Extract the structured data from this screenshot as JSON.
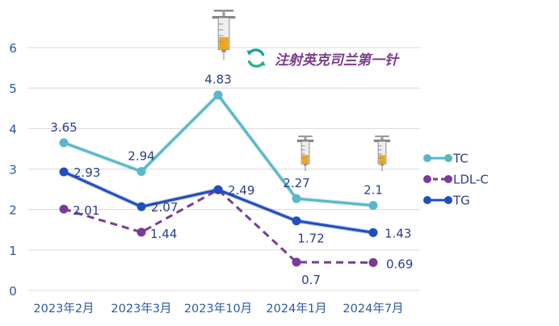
{
  "chart_data": {
    "type": "line",
    "categories": [
      "2023年2月",
      "2023年3月",
      "2023年10月",
      "2024年1月",
      "2024年7月"
    ],
    "ylim": [
      0,
      6
    ],
    "yticks": [
      0,
      1,
      2,
      3,
      4,
      5,
      6
    ],
    "grid": true,
    "legend_position": "right",
    "series": [
      {
        "name": "TC",
        "values": [
          3.65,
          2.94,
          4.83,
          2.27,
          2.1
        ],
        "labels": [
          "3.65",
          "2.94",
          "4.83",
          "2.27",
          "2.1"
        ],
        "color": "#5ab7c9",
        "dash": false
      },
      {
        "name": "LDL-C",
        "values": [
          2.01,
          1.44,
          2.49,
          0.7,
          0.69
        ],
        "labels": [
          "2.01",
          "1.44",
          "",
          "0.7",
          "0.69"
        ],
        "color": "#7a3c97",
        "dash": true
      },
      {
        "name": "TG",
        "values": [
          2.93,
          2.07,
          2.49,
          1.72,
          1.43
        ],
        "labels": [
          "2.93",
          "2.07",
          "2.49",
          "1.72",
          "1.43"
        ],
        "color": "#1f4fbf",
        "dash": false
      }
    ],
    "annotations": {
      "caption": "注射英克司兰第一针",
      "caption_color": "#7a3c8f",
      "caption_icon": "refresh-cycle-icon",
      "injection_icon": "syringe-icon",
      "injection_points": [
        "2023年10月",
        "2024年1月",
        "2024年7月"
      ]
    }
  }
}
